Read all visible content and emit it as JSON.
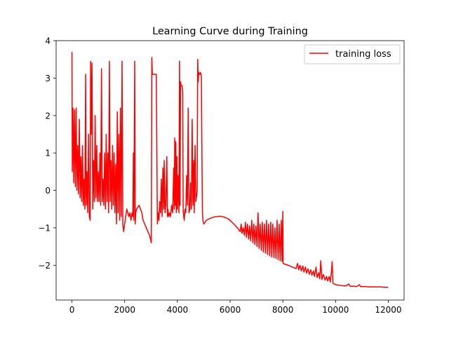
{
  "chart_data": {
    "type": "line",
    "title": "Learning Curve during Training",
    "xlabel": "",
    "ylabel": "",
    "xlim": [
      -600,
      12600
    ],
    "ylim": [
      -2.93,
      4.0
    ],
    "xticks": [
      0,
      2000,
      4000,
      6000,
      8000,
      10000,
      12000
    ],
    "xtick_labels": [
      "0",
      "2000",
      "4000",
      "6000",
      "8000",
      "10000",
      "12000"
    ],
    "yticks": [
      -2,
      -1,
      0,
      1,
      2,
      3,
      4
    ],
    "ytick_labels": [
      "−2",
      "−1",
      "0",
      "1",
      "2",
      "3",
      "4"
    ],
    "grid": false,
    "legend_position": "top-right",
    "colors": {
      "series": "#ff0000",
      "axes": "#000000",
      "background": "#ffffff",
      "legend_border": "#cccccc"
    },
    "series": [
      {
        "name": "training loss",
        "color": "#ff0000",
        "points": [
          [
            0,
            3.7
          ],
          [
            15,
            0.5
          ],
          [
            40,
            2.2
          ],
          [
            70,
            0.2
          ],
          [
            100,
            2.15
          ],
          [
            130,
            0.1
          ],
          [
            160,
            2.2
          ],
          [
            190,
            0.0
          ],
          [
            220,
            1.2
          ],
          [
            250,
            -0.1
          ],
          [
            280,
            1.9
          ],
          [
            310,
            -0.2
          ],
          [
            340,
            0.9
          ],
          [
            370,
            -0.3
          ],
          [
            400,
            1.2
          ],
          [
            430,
            -0.4
          ],
          [
            460,
            0.3
          ],
          [
            490,
            -0.5
          ],
          [
            520,
            3.1
          ],
          [
            540,
            -0.4
          ],
          [
            570,
            0.5
          ],
          [
            600,
            -0.6
          ],
          [
            630,
            1.5
          ],
          [
            660,
            -0.7
          ],
          [
            690,
            -0.8
          ],
          [
            710,
            3.45
          ],
          [
            730,
            1.5
          ],
          [
            760,
            3.4
          ],
          [
            790,
            -0.5
          ],
          [
            820,
            0.8
          ],
          [
            850,
            -0.3
          ],
          [
            880,
            2.0
          ],
          [
            910,
            -0.2
          ],
          [
            940,
            1.2
          ],
          [
            970,
            -0.3
          ],
          [
            1000,
            0.5
          ],
          [
            1030,
            -0.3
          ],
          [
            1060,
            1.0
          ],
          [
            1090,
            -0.4
          ],
          [
            1120,
            3.25
          ],
          [
            1150,
            -0.3
          ],
          [
            1180,
            0.3
          ],
          [
            1210,
            -0.4
          ],
          [
            1240,
            1.0
          ],
          [
            1270,
            -0.5
          ],
          [
            1300,
            1.5
          ],
          [
            1330,
            -0.3
          ],
          [
            1360,
            1.0
          ],
          [
            1390,
            -0.6
          ],
          [
            1420,
            3.45
          ],
          [
            1450,
            -0.3
          ],
          [
            1480,
            0.8
          ],
          [
            1510,
            -0.5
          ],
          [
            1540,
            1.2
          ],
          [
            1570,
            -0.4
          ],
          [
            1600,
            1.0
          ],
          [
            1630,
            -0.6
          ],
          [
            1660,
            0.7
          ],
          [
            1690,
            -0.9
          ],
          [
            1720,
            2.1
          ],
          [
            1750,
            -0.6
          ],
          [
            1780,
            1.5
          ],
          [
            1810,
            -0.8
          ],
          [
            1840,
            2.2
          ],
          [
            1870,
            -0.7
          ],
          [
            1900,
            3.45
          ],
          [
            1930,
            -0.9
          ],
          [
            1960,
            -1.1
          ],
          [
            2000,
            -0.9
          ],
          [
            2040,
            -0.7
          ],
          [
            2080,
            -0.5
          ],
          [
            2120,
            -0.6
          ],
          [
            2160,
            -0.7
          ],
          [
            2200,
            -0.6
          ],
          [
            2240,
            -0.8
          ],
          [
            2280,
            -0.6
          ],
          [
            2310,
            -0.7
          ],
          [
            2330,
            1.0
          ],
          [
            2350,
            -0.8
          ],
          [
            2380,
            3.45
          ],
          [
            2400,
            -0.9
          ],
          [
            2420,
            -0.6
          ],
          [
            2450,
            -0.5
          ],
          [
            2500,
            -0.45
          ],
          [
            2550,
            -0.4
          ],
          [
            2600,
            -0.5
          ],
          [
            2650,
            -0.6
          ],
          [
            2700,
            -0.8
          ],
          [
            2760,
            -0.9
          ],
          [
            2820,
            -1.0
          ],
          [
            2880,
            -1.1
          ],
          [
            2940,
            -1.2
          ],
          [
            2980,
            -1.3
          ],
          [
            3010,
            -1.4
          ],
          [
            3030,
            3.55
          ],
          [
            3050,
            3.1
          ],
          [
            3200,
            3.1
          ],
          [
            3240,
            -0.9
          ],
          [
            3270,
            -0.6
          ],
          [
            3300,
            -0.8
          ],
          [
            3330,
            -0.3
          ],
          [
            3360,
            -0.6
          ],
          [
            3390,
            0.3
          ],
          [
            3420,
            -0.7
          ],
          [
            3450,
            0.6
          ],
          [
            3480,
            -0.5
          ],
          [
            3500,
            0.8
          ],
          [
            3530,
            -0.6
          ],
          [
            3560,
            -0.4
          ],
          [
            3600,
            0.9
          ],
          [
            3620,
            -0.7
          ],
          [
            3640,
            -0.5
          ],
          [
            3670,
            -0.7
          ],
          [
            3700,
            -0.6
          ],
          [
            3740,
            -0.7
          ],
          [
            3780,
            -0.4
          ],
          [
            3820,
            -0.6
          ],
          [
            3860,
            0.6
          ],
          [
            3880,
            -0.5
          ],
          [
            3900,
            1.4
          ],
          [
            3920,
            -0.4
          ],
          [
            3940,
            1.3
          ],
          [
            3960,
            -0.6
          ],
          [
            3980,
            0.9
          ],
          [
            4000,
            -0.5
          ],
          [
            4030,
            0.4
          ],
          [
            4060,
            -0.6
          ],
          [
            4080,
            3.45
          ],
          [
            4100,
            -0.4
          ],
          [
            4120,
            2.9
          ],
          [
            4140,
            2.8
          ],
          [
            4180,
            2.8
          ],
          [
            4200,
            2.6
          ],
          [
            4220,
            -0.5
          ],
          [
            4240,
            -0.7
          ],
          [
            4260,
            -0.8
          ],
          [
            4290,
            -0.5
          ],
          [
            4320,
            -0.6
          ],
          [
            4350,
            0.4
          ],
          [
            4380,
            -0.4
          ],
          [
            4410,
            2.2
          ],
          [
            4440,
            -0.6
          ],
          [
            4470,
            -0.5
          ],
          [
            4500,
            0.2
          ],
          [
            4530,
            -0.5
          ],
          [
            4560,
            1.9
          ],
          [
            4590,
            -0.4
          ],
          [
            4620,
            0.8
          ],
          [
            4640,
            -0.6
          ],
          [
            4670,
            1.2
          ],
          [
            4700,
            -0.3
          ],
          [
            4720,
            -0.2
          ],
          [
            4750,
            0.0
          ],
          [
            4770,
            3.5
          ],
          [
            4790,
            2.9
          ],
          [
            4810,
            3.15
          ],
          [
            4850,
            3.1
          ],
          [
            4880,
            3.15
          ],
          [
            4910,
            3.05
          ],
          [
            4930,
            1.0
          ],
          [
            4950,
            -0.6
          ],
          [
            4970,
            -0.8
          ],
          [
            5000,
            -0.9
          ],
          [
            5050,
            -0.85
          ],
          [
            5100,
            -0.8
          ],
          [
            5200,
            -0.76
          ],
          [
            5300,
            -0.73
          ],
          [
            5400,
            -0.71
          ],
          [
            5500,
            -0.7
          ],
          [
            5600,
            -0.69
          ],
          [
            5700,
            -0.7
          ],
          [
            5800,
            -0.72
          ],
          [
            5900,
            -0.75
          ],
          [
            6000,
            -0.8
          ],
          [
            6100,
            -0.87
          ],
          [
            6200,
            -0.94
          ],
          [
            6300,
            -1.02
          ],
          [
            6380,
            -1.1
          ],
          [
            6420,
            -0.9
          ],
          [
            6450,
            -1.15
          ],
          [
            6500,
            -1.0
          ],
          [
            6540,
            -1.2
          ],
          [
            6580,
            -0.85
          ],
          [
            6620,
            -1.25
          ],
          [
            6660,
            -0.9
          ],
          [
            6700,
            -1.3
          ],
          [
            6740,
            -0.95
          ],
          [
            6780,
            -1.35
          ],
          [
            6820,
            -0.8
          ],
          [
            6860,
            -1.4
          ],
          [
            6900,
            -0.9
          ],
          [
            6940,
            -1.45
          ],
          [
            6980,
            -0.95
          ],
          [
            7020,
            -1.5
          ],
          [
            7060,
            -0.6
          ],
          [
            7100,
            -1.55
          ],
          [
            7140,
            -0.9
          ],
          [
            7180,
            -1.6
          ],
          [
            7220,
            -0.85
          ],
          [
            7260,
            -1.65
          ],
          [
            7300,
            -0.9
          ],
          [
            7340,
            -1.68
          ],
          [
            7380,
            -0.8
          ],
          [
            7420,
            -1.72
          ],
          [
            7460,
            -0.9
          ],
          [
            7500,
            -1.75
          ],
          [
            7540,
            -0.85
          ],
          [
            7580,
            -1.78
          ],
          [
            7620,
            -0.9
          ],
          [
            7660,
            -1.8
          ],
          [
            7700,
            -1.0
          ],
          [
            7740,
            -1.82
          ],
          [
            7780,
            -0.8
          ],
          [
            7820,
            -1.85
          ],
          [
            7860,
            -0.9
          ],
          [
            7900,
            -1.88
          ],
          [
            7940,
            -0.8
          ],
          [
            7970,
            -1.9
          ],
          [
            8000,
            -0.56
          ],
          [
            8010,
            -1.95
          ],
          [
            8100,
            -1.98
          ],
          [
            8200,
            -2.0
          ],
          [
            8300,
            -2.03
          ],
          [
            8400,
            -2.06
          ],
          [
            8500,
            -2.09
          ],
          [
            8560,
            -1.95
          ],
          [
            8600,
            -2.12
          ],
          [
            8650,
            -2.0
          ],
          [
            8700,
            -2.15
          ],
          [
            8760,
            -2.02
          ],
          [
            8800,
            -2.18
          ],
          [
            8860,
            -2.05
          ],
          [
            8900,
            -2.21
          ],
          [
            8960,
            -2.1
          ],
          [
            9000,
            -2.24
          ],
          [
            9060,
            -2.12
          ],
          [
            9100,
            -2.27
          ],
          [
            9160,
            -2.15
          ],
          [
            9200,
            -2.3
          ],
          [
            9260,
            -2.05
          ],
          [
            9300,
            -2.33
          ],
          [
            9360,
            -2.2
          ],
          [
            9400,
            -2.36
          ],
          [
            9440,
            -1.88
          ],
          [
            9480,
            -2.38
          ],
          [
            9540,
            -2.25
          ],
          [
            9600,
            -2.4
          ],
          [
            9660,
            -2.3
          ],
          [
            9700,
            -2.42
          ],
          [
            9760,
            -2.3
          ],
          [
            9800,
            -2.45
          ],
          [
            9840,
            -2.2
          ],
          [
            9870,
            -1.9
          ],
          [
            9900,
            -2.48
          ],
          [
            9950,
            -2.5
          ],
          [
            10000,
            -2.52
          ],
          [
            10100,
            -2.53
          ],
          [
            10200,
            -2.54
          ],
          [
            10300,
            -2.55
          ],
          [
            10400,
            -2.55
          ],
          [
            10500,
            -2.5
          ],
          [
            10550,
            -2.56
          ],
          [
            10700,
            -2.56
          ],
          [
            10800,
            -2.57
          ],
          [
            10900,
            -2.52
          ],
          [
            10950,
            -2.57
          ],
          [
            11100,
            -2.57
          ],
          [
            11300,
            -2.58
          ],
          [
            11500,
            -2.58
          ],
          [
            11700,
            -2.58
          ],
          [
            11900,
            -2.59
          ],
          [
            12000,
            -2.59
          ]
        ]
      }
    ]
  }
}
